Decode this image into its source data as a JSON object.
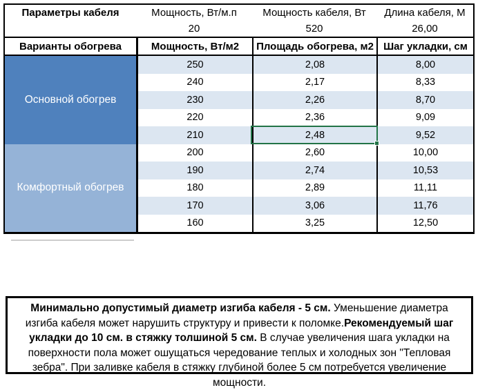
{
  "colors": {
    "group_primary_bg": "#4f81bd",
    "group_comfort_bg": "#95b3d7",
    "banded_row_bg": "#dce6f1",
    "selection_border": "#217346",
    "grid_border": "#000000"
  },
  "params": {
    "title": "Параметры кабеля",
    "columns": [
      {
        "label": "Мощность, Вт/м.п",
        "value": "20"
      },
      {
        "label": "Мощность кабеля, Вт",
        "value": "520"
      },
      {
        "label": "Длина кабеля, М",
        "value": "26,00"
      }
    ]
  },
  "table": {
    "headers": [
      "Варианты обогрева",
      "Мощность, Вт/м2",
      "Площадь обогрева, м2",
      "Шаг укладки, см"
    ],
    "groups": [
      {
        "label": "Основной обогрев",
        "rows": [
          {
            "power": "250",
            "area": "2,08",
            "step": "8,00"
          },
          {
            "power": "240",
            "area": "2,17",
            "step": "8,33"
          },
          {
            "power": "230",
            "area": "2,26",
            "step": "8,70"
          },
          {
            "power": "220",
            "area": "2,36",
            "step": "9,09"
          },
          {
            "power": "210",
            "area": "2,48",
            "step": "9,52"
          }
        ]
      },
      {
        "label": "Комфортный обогрев",
        "rows": [
          {
            "power": "200",
            "area": "2,60",
            "step": "10,00"
          },
          {
            "power": "190",
            "area": "2,74",
            "step": "10,53"
          },
          {
            "power": "180",
            "area": "2,89",
            "step": "11,11"
          },
          {
            "power": "170",
            "area": "3,06",
            "step": "11,76"
          },
          {
            "power": "160",
            "area": "3,25",
            "step": "12,50"
          }
        ]
      }
    ]
  },
  "selection": {
    "value": "2,48"
  },
  "note": {
    "segments": [
      {
        "text": "Минимально допустимый диаметр изгиба кабеля - 5 см.",
        "bold": true
      },
      {
        "text": "  Уменьшение диаметра изгиба кабеля может нарушить структуру и привести к поломке.",
        "bold": false
      },
      {
        "text": "Рекомендуемый шаг укладки до 10 см. в стяжку толшиной 5 см.",
        "bold": true
      },
      {
        "text": " В  случае увеличения шага укладки на поверхности пола может ошущаться чередование теплых и холодных зон \"Тепловая зебра\". При заливке кабеля в стяжку глубиной более 5 см потребуется увеличение мощности.",
        "bold": false
      }
    ]
  }
}
